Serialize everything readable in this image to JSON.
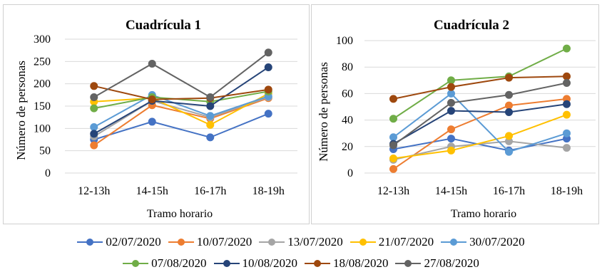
{
  "colors": {
    "02/07/2020": "#4472c4",
    "10/07/2020": "#ed7d31",
    "13/07/2020": "#a5a5a5",
    "21/07/2020": "#ffc000",
    "30/07/2020": "#5b9bd5",
    "07/08/2020": "#70ad47",
    "10/08/2020": "#264478",
    "18/08/2020": "#9e480e",
    "27/08/2020": "#636363"
  },
  "legend": {
    "items": [
      "02/07/2020",
      "10/07/2020",
      "13/07/2020",
      "21/07/2020",
      "30/07/2020",
      "07/08/2020",
      "10/08/2020",
      "18/08/2020",
      "27/08/2020"
    ]
  },
  "chart_data": [
    {
      "type": "line",
      "title": "Cuadrícula 1",
      "xlabel": "Tramo horario",
      "ylabel": "Número de personas",
      "categories": [
        "12-13h",
        "14-15h",
        "16-17h",
        "18-19h"
      ],
      "ylim": [
        0,
        300
      ],
      "yticks": [
        0,
        50,
        100,
        150,
        200,
        250,
        300
      ],
      "grid": true,
      "series": [
        {
          "name": "02/07/2020",
          "values": [
            75,
            115,
            80,
            133
          ]
        },
        {
          "name": "10/07/2020",
          "values": [
            62,
            152,
            122,
            168
          ]
        },
        {
          "name": "13/07/2020",
          "values": [
            82,
            162,
            125,
            170
          ]
        },
        {
          "name": "21/07/2020",
          "values": [
            160,
            168,
            108,
            178
          ]
        },
        {
          "name": "30/07/2020",
          "values": [
            103,
            175,
            128,
            172
          ]
        },
        {
          "name": "07/08/2020",
          "values": [
            145,
            170,
            160,
            183
          ]
        },
        {
          "name": "10/08/2020",
          "values": [
            88,
            162,
            150,
            237
          ]
        },
        {
          "name": "18/08/2020",
          "values": [
            195,
            165,
            168,
            187
          ]
        },
        {
          "name": "27/08/2020",
          "values": [
            170,
            245,
            170,
            270
          ]
        }
      ]
    },
    {
      "type": "line",
      "title": "Cuadrícula 2",
      "xlabel": "Tramo horario",
      "ylabel": "Número de personas",
      "categories": [
        "12-13h",
        "14-15h",
        "16-17h",
        "18-19h"
      ],
      "ylim": [
        0,
        100
      ],
      "yticks": [
        0,
        20,
        40,
        60,
        80,
        100
      ],
      "grid": true,
      "series": [
        {
          "name": "02/07/2020",
          "values": [
            18,
            26,
            17,
            26
          ]
        },
        {
          "name": "10/07/2020",
          "values": [
            3,
            33,
            51,
            56
          ]
        },
        {
          "name": "13/07/2020",
          "values": [
            10,
            20,
            24,
            19
          ]
        },
        {
          "name": "21/07/2020",
          "values": [
            11,
            17,
            28,
            44
          ]
        },
        {
          "name": "30/07/2020",
          "values": [
            27,
            60,
            16,
            30
          ]
        },
        {
          "name": "07/08/2020",
          "values": [
            41,
            70,
            73,
            94
          ]
        },
        {
          "name": "10/08/2020",
          "values": [
            22,
            47,
            46,
            52
          ]
        },
        {
          "name": "18/08/2020",
          "values": [
            56,
            65,
            72,
            73
          ]
        },
        {
          "name": "27/08/2020",
          "values": [
            21,
            53,
            59,
            68
          ]
        }
      ]
    }
  ]
}
